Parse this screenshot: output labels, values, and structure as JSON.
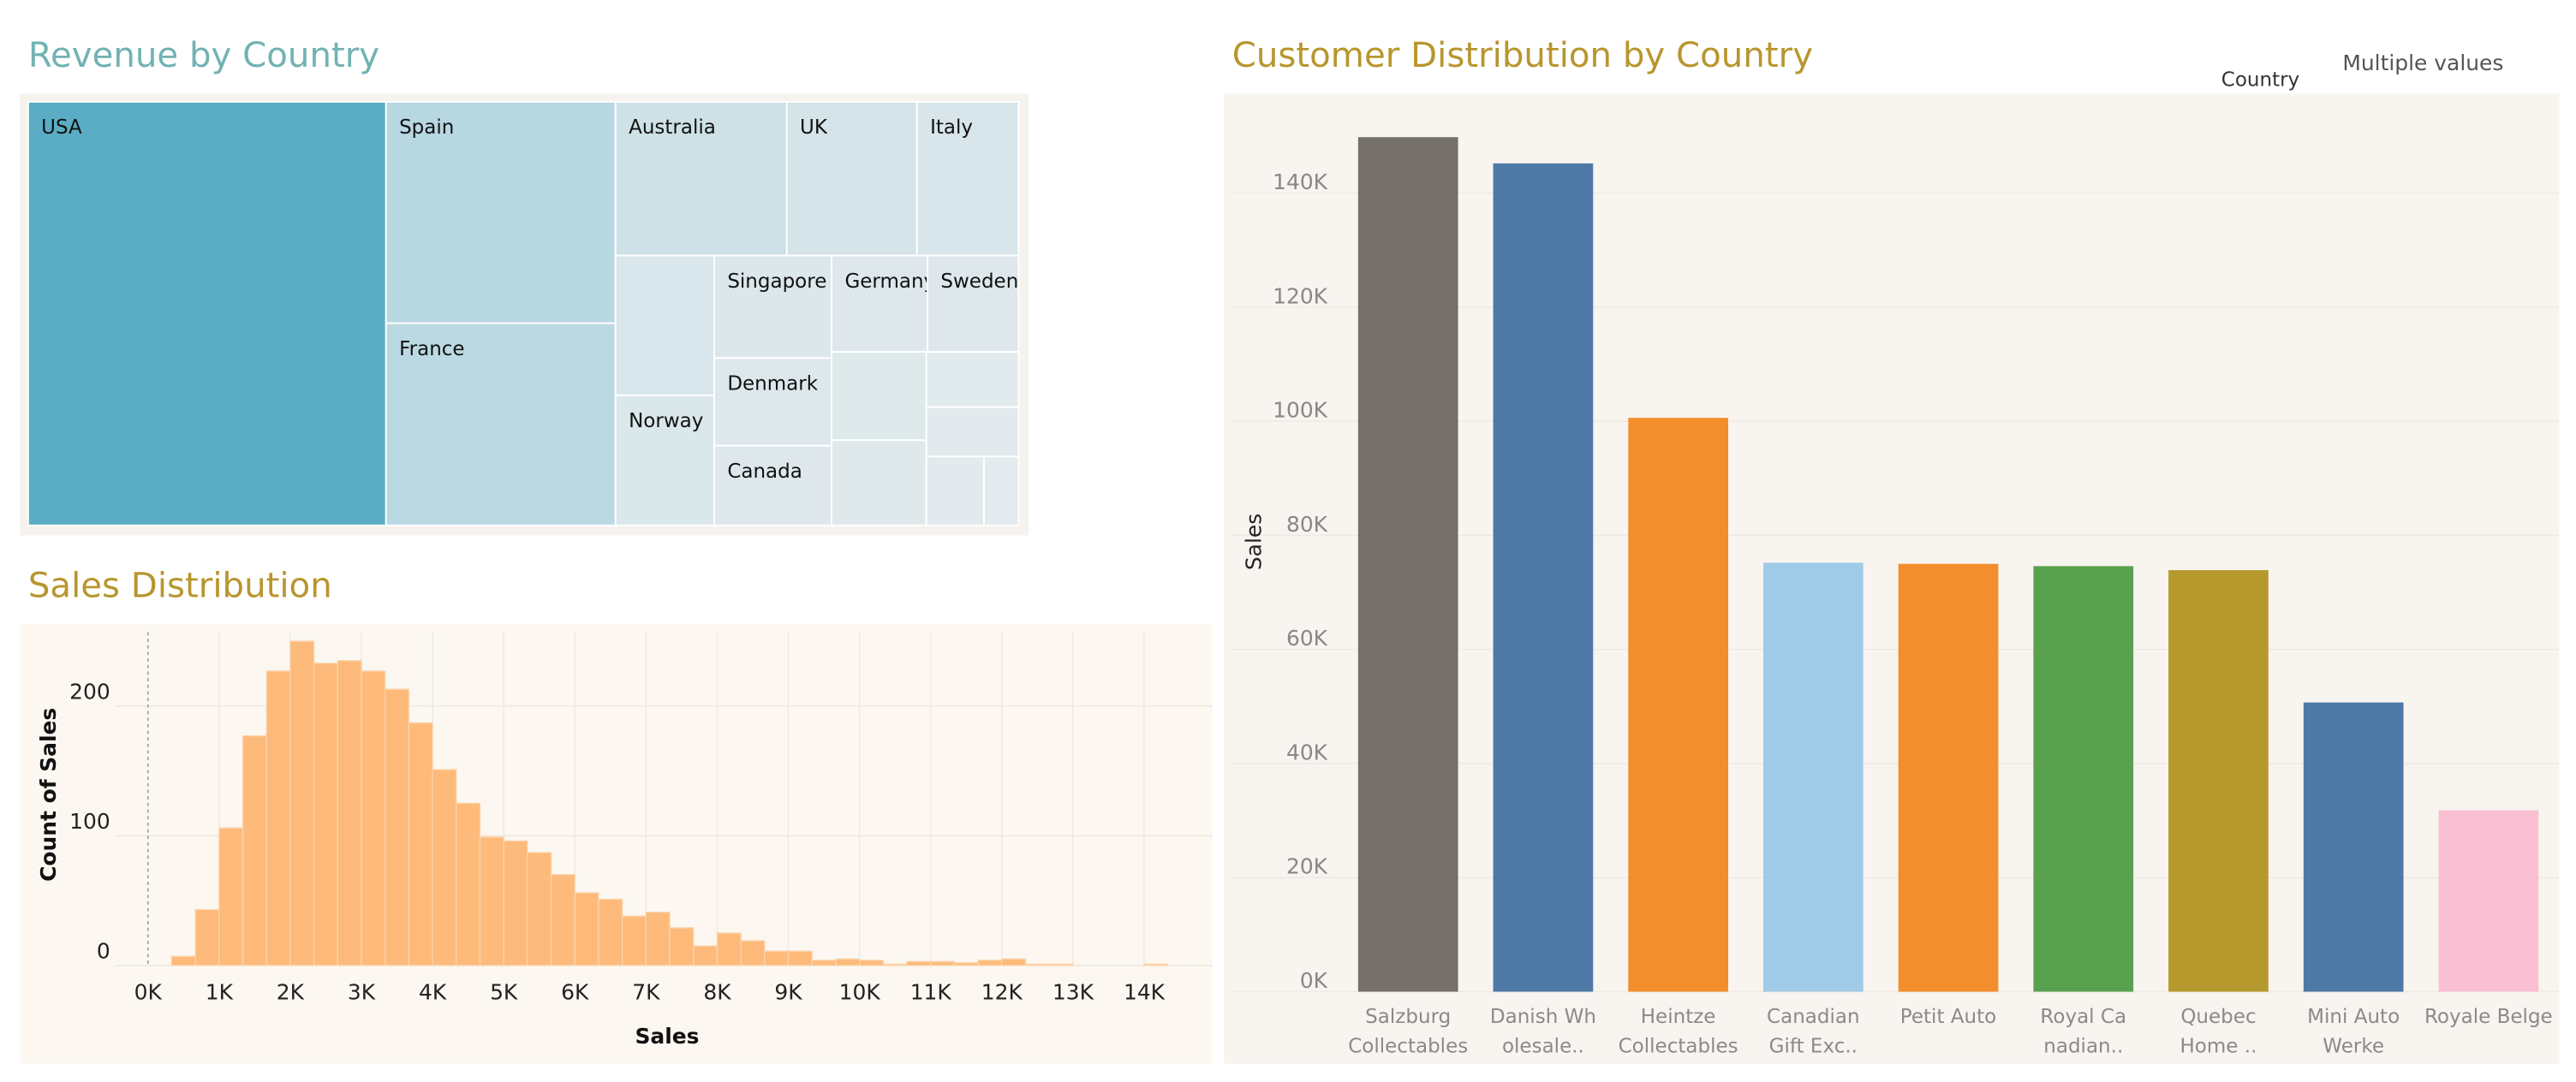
{
  "chart_data": [
    {
      "type": "treemap",
      "title": "Revenue by Country",
      "categories": [
        "USA",
        "Spain",
        "France",
        "Australia",
        "UK",
        "Italy",
        null,
        "Norway",
        "Singapore",
        "Denmark",
        "Canada",
        "Germany",
        "Sweden",
        null,
        null,
        null,
        null,
        null,
        null
      ],
      "values": [
        3627,
        1216,
        1110,
        630,
        479,
        374,
        330,
        307,
        288,
        246,
        224,
        221,
        210,
        200,
        193,
        122,
        109,
        95,
        57
      ],
      "color_range": [
        "#e4ebee",
        "#5aadc5"
      ]
    },
    {
      "type": "histogram",
      "title": "Sales Distribution",
      "x_label": "Sales",
      "y_label": "Count of Sales",
      "bins": [
        333,
        667,
        1000,
        1333,
        1667,
        2000,
        2333,
        2667,
        3000,
        3333,
        3667,
        4000,
        4333,
        4667,
        5000,
        5333,
        5667,
        6000,
        6333,
        6667,
        7000,
        7333,
        7667,
        8000,
        8333,
        8667,
        9000,
        9333,
        9667,
        10000,
        10333,
        10667,
        11000,
        11333,
        11667,
        12000,
        12333,
        12667,
        13000,
        13333,
        13667,
        14000,
        14333
      ],
      "values": [
        7,
        43,
        106,
        177,
        227,
        250,
        233,
        235,
        227,
        213,
        187,
        151,
        125,
        99,
        96,
        87,
        70,
        56,
        51,
        38,
        41,
        29,
        15,
        25,
        19,
        11,
        11,
        4,
        5,
        4,
        1,
        3,
        3,
        2,
        4,
        5,
        1,
        1,
        0,
        0,
        0,
        1
      ],
      "color": "#fdba7b",
      "xlim": [
        -460,
        14960
      ],
      "ylim": [
        0,
        257
      ],
      "xticks": [
        {
          "value": 0,
          "label": "0K"
        },
        {
          "value": 1000,
          "label": "1K"
        },
        {
          "value": 2000,
          "label": "2K"
        },
        {
          "value": 3000,
          "label": "3K"
        },
        {
          "value": 4000,
          "label": "4K"
        },
        {
          "value": 5000,
          "label": "5K"
        },
        {
          "value": 6000,
          "label": "6K"
        },
        {
          "value": 7000,
          "label": "7K"
        },
        {
          "value": 8000,
          "label": "8K"
        },
        {
          "value": 9000,
          "label": "9K"
        },
        {
          "value": 10000,
          "label": "10K"
        },
        {
          "value": 11000,
          "label": "11K"
        },
        {
          "value": 12000,
          "label": "12K"
        },
        {
          "value": 13000,
          "label": "13K"
        },
        {
          "value": 14000,
          "label": "14K"
        }
      ],
      "yticks": [
        0,
        100,
        200
      ],
      "grid": true
    },
    {
      "type": "bar",
      "title": "Customer Distribution by Country",
      "y_label": "Sales",
      "categories": [
        "Salzburg\nCollectables",
        "Danish Wh\nolesale..",
        "Heintze\nCollectables",
        "Canadian\nGift Exc..",
        "Petit Auto",
        "Royal Ca\nnadian..",
        "Quebec\nHome ..",
        "Mini Auto\nWerke",
        "Royale Belge"
      ],
      "values": [
        149800,
        145200,
        100600,
        75200,
        75000,
        74600,
        73900,
        50700,
        31800
      ],
      "colors": [
        "#76706b",
        "#4e79a7",
        "#f28e2b",
        "#a0cbe8",
        "#f28e2b",
        "#59a14f",
        "#b6992d",
        "#4e79a7",
        "#fabfd2"
      ],
      "ylim": [
        0,
        156000
      ],
      "yticks": [
        {
          "value": 0,
          "label": "0K"
        },
        {
          "value": 20000,
          "label": "20K"
        },
        {
          "value": 40000,
          "label": "40K"
        },
        {
          "value": 60000,
          "label": "60K"
        },
        {
          "value": 80000,
          "label": "80K"
        },
        {
          "value": 100000,
          "label": "100K"
        },
        {
          "value": 120000,
          "label": "120K"
        },
        {
          "value": 140000,
          "label": "140K"
        }
      ],
      "grid": true
    }
  ],
  "filter": {
    "label": "Country",
    "value": "Multiple values"
  }
}
